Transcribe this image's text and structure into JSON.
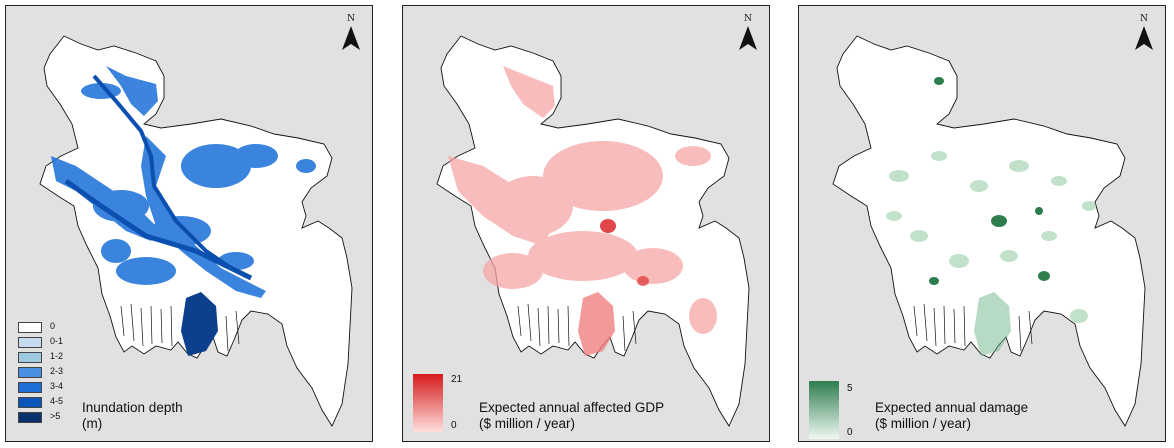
{
  "north_label": "N",
  "panels": [
    {
      "title_line1": "Inundation depth",
      "title_line2": "(m)",
      "legend": [
        {
          "label": "0",
          "color": "#ffffff"
        },
        {
          "label": "0-1",
          "color": "#c6dbef"
        },
        {
          "label": "1-2",
          "color": "#9ecae1"
        },
        {
          "label": "2-3",
          "color": "#4a90e2"
        },
        {
          "label": "3-4",
          "color": "#1f6fd8"
        },
        {
          "label": "4-5",
          "color": "#0b55b8"
        },
        {
          "label": ">5",
          "color": "#08306b"
        }
      ]
    },
    {
      "title_line1": "Expected annual affected GDP",
      "title_line2": "($ million / year)",
      "ramp_max": "21",
      "ramp_min": "0",
      "ramp_colors": [
        "#d7191c",
        "#fde0dd"
      ]
    },
    {
      "title_line1": "Expected annual damage",
      "title_line2": "($ million / year)",
      "ramp_max": "5",
      "ramp_min": "0",
      "ramp_colors": [
        "#2e7d4f",
        "#f0f8f2"
      ]
    }
  ]
}
